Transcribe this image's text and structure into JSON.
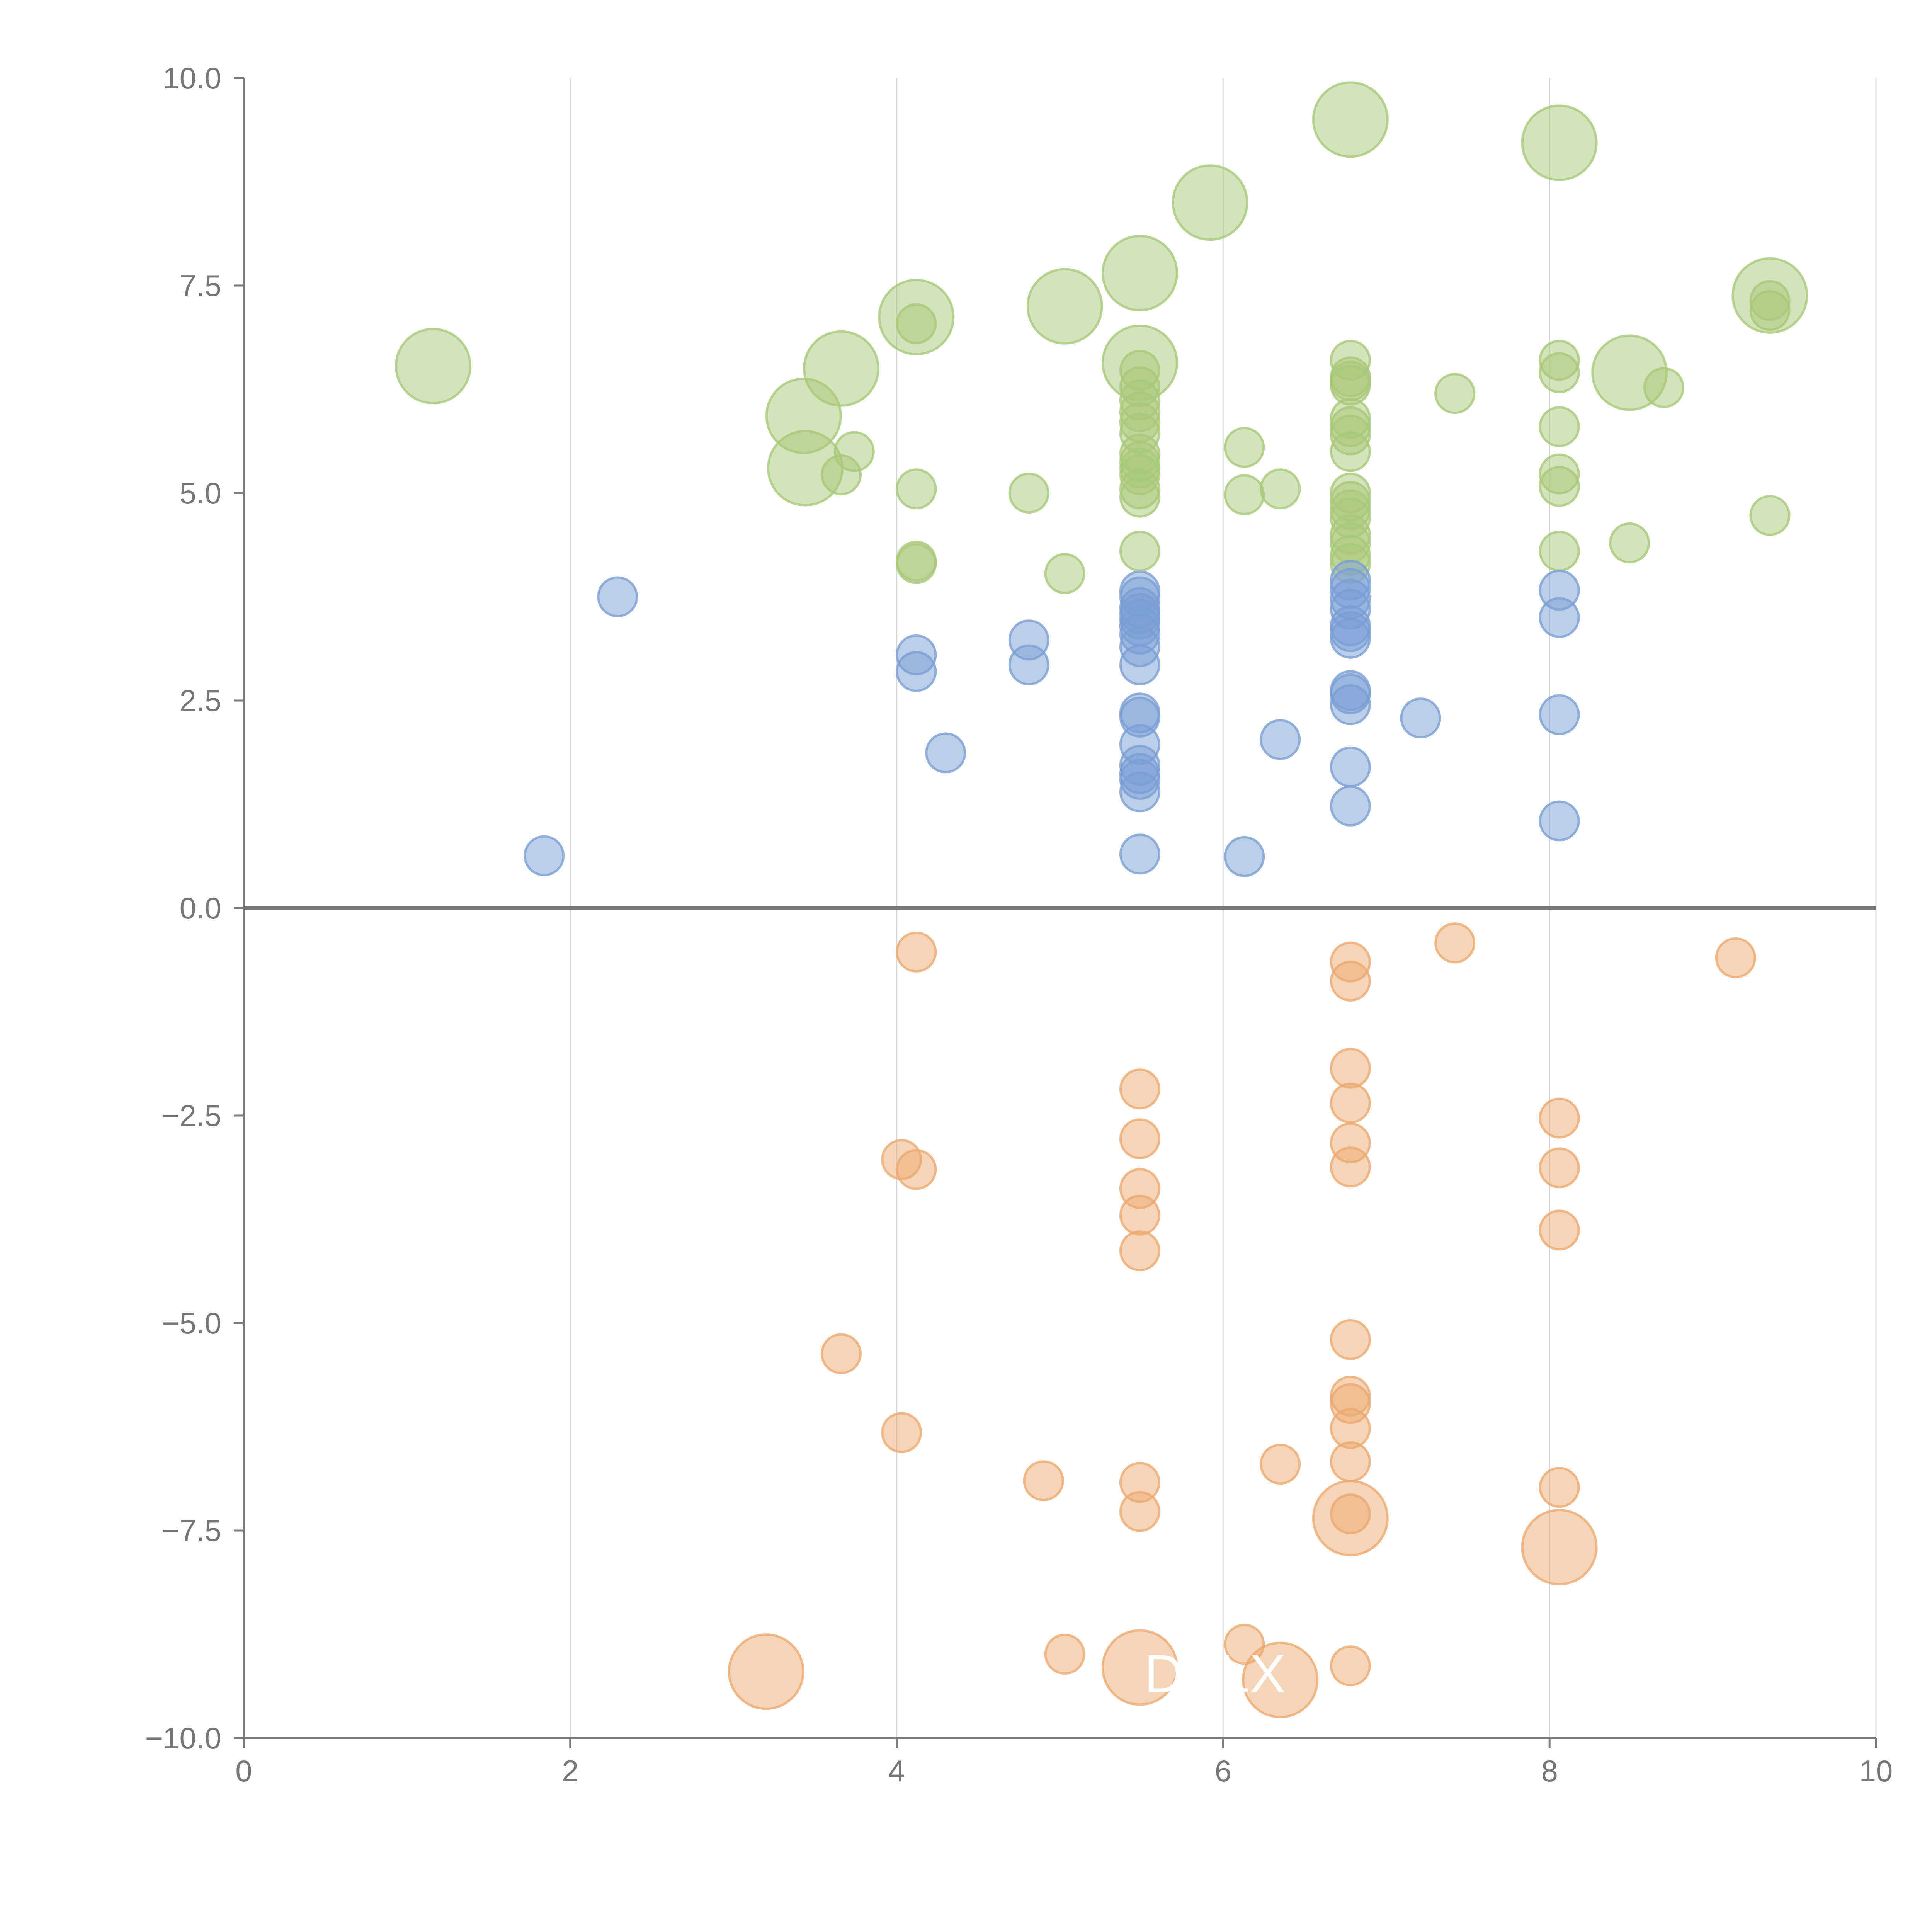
{
  "colors": {
    "background": "#ffffff",
    "axis": "#7a7a7a",
    "zero_line": "#7a7a7a",
    "grid": "#d8d8d8",
    "tick_text": "#767676",
    "overlay_text": "#ffffff"
  },
  "overlay_labels": [
    {
      "text": "DYLX",
      "x": 5.95,
      "y": -9.45
    }
  ],
  "chart_data": {
    "type": "scatter",
    "title": "",
    "xlabel": "",
    "ylabel": "",
    "xlim": [
      0,
      10
    ],
    "ylim": [
      -10,
      10
    ],
    "grid": "vertical",
    "zero_line": true,
    "x_ticks": [
      "0",
      "2",
      "4",
      "6",
      "8",
      "10"
    ],
    "y_ticks": [
      "−10.0",
      "−7.5",
      "−5.0",
      "−2.5",
      "0.0",
      "2.5",
      "5.0",
      "7.5",
      "10.0"
    ],
    "x_tick_values": [
      0,
      2,
      4,
      6,
      8,
      10
    ],
    "y_tick_values": [
      -10,
      -7.5,
      -5,
      -2.5,
      0,
      2.5,
      5,
      7.5,
      10
    ],
    "series": [
      {
        "color": "#a8c879",
        "points": [
          {
            "x": 1.16,
            "y": 6.53,
            "s": "large"
          },
          {
            "x": 3.43,
            "y": 5.93,
            "s": "large"
          },
          {
            "x": 3.44,
            "y": 5.3,
            "s": "large"
          },
          {
            "x": 3.66,
            "y": 6.5,
            "s": "large"
          },
          {
            "x": 3.66,
            "y": 5.22,
            "s": "small"
          },
          {
            "x": 3.74,
            "y": 5.5,
            "s": "small"
          },
          {
            "x": 4.12,
            "y": 7.12,
            "s": "large"
          },
          {
            "x": 4.12,
            "y": 7.04,
            "s": "small"
          },
          {
            "x": 4.12,
            "y": 5.05,
            "s": "small"
          },
          {
            "x": 4.12,
            "y": 4.18,
            "s": "small"
          },
          {
            "x": 4.12,
            "y": 4.15,
            "s": "small"
          },
          {
            "x": 4.81,
            "y": 5.0,
            "s": "small"
          },
          {
            "x": 5.03,
            "y": 7.25,
            "s": "large"
          },
          {
            "x": 5.03,
            "y": 4.03,
            "s": "small"
          },
          {
            "x": 5.49,
            "y": 7.65,
            "s": "large"
          },
          {
            "x": 5.49,
            "y": 6.57,
            "s": "large"
          },
          {
            "x": 5.49,
            "y": 6.48,
            "s": "small"
          },
          {
            "x": 5.49,
            "y": 6.28,
            "s": "small"
          },
          {
            "x": 5.49,
            "y": 6.12,
            "s": "small"
          },
          {
            "x": 5.49,
            "y": 5.98,
            "s": "small"
          },
          {
            "x": 5.49,
            "y": 5.85,
            "s": "small"
          },
          {
            "x": 5.49,
            "y": 5.72,
            "s": "small"
          },
          {
            "x": 5.49,
            "y": 5.47,
            "s": "small"
          },
          {
            "x": 5.49,
            "y": 5.38,
            "s": "small"
          },
          {
            "x": 5.49,
            "y": 5.3,
            "s": "small"
          },
          {
            "x": 5.49,
            "y": 5.22,
            "s": "small"
          },
          {
            "x": 5.49,
            "y": 5.05,
            "s": "small"
          },
          {
            "x": 5.49,
            "y": 4.95,
            "s": "small"
          },
          {
            "x": 5.49,
            "y": 4.3,
            "s": "small"
          },
          {
            "x": 5.92,
            "y": 8.5,
            "s": "large"
          },
          {
            "x": 6.13,
            "y": 5.55,
            "s": "small"
          },
          {
            "x": 6.13,
            "y": 4.98,
            "s": "small"
          },
          {
            "x": 6.35,
            "y": 5.05,
            "s": "small"
          },
          {
            "x": 6.78,
            "y": 9.5,
            "s": "large"
          },
          {
            "x": 6.78,
            "y": 6.6,
            "s": "small"
          },
          {
            "x": 6.78,
            "y": 6.4,
            "s": "small"
          },
          {
            "x": 6.78,
            "y": 6.35,
            "s": "small"
          },
          {
            "x": 6.78,
            "y": 6.3,
            "s": "small"
          },
          {
            "x": 6.78,
            "y": 5.9,
            "s": "small"
          },
          {
            "x": 6.78,
            "y": 5.8,
            "s": "small"
          },
          {
            "x": 6.78,
            "y": 5.7,
            "s": "small"
          },
          {
            "x": 6.78,
            "y": 5.5,
            "s": "small"
          },
          {
            "x": 6.78,
            "y": 5.0,
            "s": "small"
          },
          {
            "x": 6.78,
            "y": 4.9,
            "s": "small"
          },
          {
            "x": 6.78,
            "y": 4.8,
            "s": "small"
          },
          {
            "x": 6.78,
            "y": 4.7,
            "s": "small"
          },
          {
            "x": 6.78,
            "y": 4.5,
            "s": "small"
          },
          {
            "x": 6.78,
            "y": 4.4,
            "s": "small"
          },
          {
            "x": 6.78,
            "y": 4.25,
            "s": "small"
          },
          {
            "x": 6.78,
            "y": 4.15,
            "s": "small"
          },
          {
            "x": 7.42,
            "y": 6.2,
            "s": "small"
          },
          {
            "x": 8.06,
            "y": 9.22,
            "s": "large"
          },
          {
            "x": 8.06,
            "y": 6.6,
            "s": "small"
          },
          {
            "x": 8.06,
            "y": 6.45,
            "s": "small"
          },
          {
            "x": 8.06,
            "y": 5.8,
            "s": "small"
          },
          {
            "x": 8.06,
            "y": 5.23,
            "s": "small"
          },
          {
            "x": 8.06,
            "y": 5.08,
            "s": "small"
          },
          {
            "x": 8.06,
            "y": 4.3,
            "s": "small"
          },
          {
            "x": 8.49,
            "y": 6.45,
            "s": "large"
          },
          {
            "x": 8.49,
            "y": 4.4,
            "s": "small"
          },
          {
            "x": 8.7,
            "y": 6.27,
            "s": "small"
          },
          {
            "x": 9.35,
            "y": 7.38,
            "s": "large"
          },
          {
            "x": 9.35,
            "y": 7.32,
            "s": "small"
          },
          {
            "x": 9.35,
            "y": 7.2,
            "s": "small"
          },
          {
            "x": 9.35,
            "y": 4.73,
            "s": "small"
          }
        ]
      },
      {
        "color": "#7a9fd3",
        "points": [
          {
            "x": 1.84,
            "y": 0.63,
            "s": "small"
          },
          {
            "x": 2.29,
            "y": 3.75,
            "s": "small"
          },
          {
            "x": 4.12,
            "y": 3.05,
            "s": "small"
          },
          {
            "x": 4.12,
            "y": 2.85,
            "s": "small"
          },
          {
            "x": 4.3,
            "y": 1.87,
            "s": "small"
          },
          {
            "x": 4.81,
            "y": 3.23,
            "s": "small"
          },
          {
            "x": 4.81,
            "y": 2.93,
            "s": "small"
          },
          {
            "x": 5.49,
            "y": 3.82,
            "s": "small"
          },
          {
            "x": 5.49,
            "y": 3.75,
            "s": "small"
          },
          {
            "x": 5.49,
            "y": 3.62,
            "s": "small"
          },
          {
            "x": 5.49,
            "y": 3.55,
            "s": "small"
          },
          {
            "x": 5.49,
            "y": 3.48,
            "s": "small"
          },
          {
            "x": 5.49,
            "y": 3.4,
            "s": "small"
          },
          {
            "x": 5.49,
            "y": 3.3,
            "s": "small"
          },
          {
            "x": 5.49,
            "y": 3.15,
            "s": "small"
          },
          {
            "x": 5.49,
            "y": 2.93,
            "s": "small"
          },
          {
            "x": 5.49,
            "y": 2.35,
            "s": "small"
          },
          {
            "x": 5.49,
            "y": 2.3,
            "s": "small"
          },
          {
            "x": 5.49,
            "y": 1.97,
            "s": "small"
          },
          {
            "x": 5.49,
            "y": 1.72,
            "s": "small"
          },
          {
            "x": 5.49,
            "y": 1.62,
            "s": "small"
          },
          {
            "x": 5.49,
            "y": 1.55,
            "s": "small"
          },
          {
            "x": 5.49,
            "y": 1.4,
            "s": "small"
          },
          {
            "x": 5.49,
            "y": 0.65,
            "s": "small"
          },
          {
            "x": 6.13,
            "y": 0.62,
            "s": "small"
          },
          {
            "x": 6.35,
            "y": 2.03,
            "s": "small"
          },
          {
            "x": 6.78,
            "y": 3.95,
            "s": "small"
          },
          {
            "x": 6.78,
            "y": 3.85,
            "s": "small"
          },
          {
            "x": 6.78,
            "y": 3.72,
            "s": "small"
          },
          {
            "x": 6.78,
            "y": 3.6,
            "s": "small"
          },
          {
            "x": 6.78,
            "y": 3.4,
            "s": "small"
          },
          {
            "x": 6.78,
            "y": 3.33,
            "s": "small"
          },
          {
            "x": 6.78,
            "y": 3.25,
            "s": "small"
          },
          {
            "x": 6.78,
            "y": 2.62,
            "s": "small"
          },
          {
            "x": 6.78,
            "y": 2.58,
            "s": "small"
          },
          {
            "x": 6.78,
            "y": 2.45,
            "s": "small"
          },
          {
            "x": 6.78,
            "y": 1.7,
            "s": "small"
          },
          {
            "x": 6.78,
            "y": 1.23,
            "s": "small"
          },
          {
            "x": 7.21,
            "y": 2.29,
            "s": "small"
          },
          {
            "x": 8.06,
            "y": 3.83,
            "s": "small"
          },
          {
            "x": 8.06,
            "y": 3.5,
            "s": "small"
          },
          {
            "x": 8.06,
            "y": 2.33,
            "s": "small"
          },
          {
            "x": 8.06,
            "y": 1.05,
            "s": "small"
          }
        ]
      },
      {
        "color": "#eba970",
        "points": [
          {
            "x": 3.2,
            "y": -9.2,
            "s": "large"
          },
          {
            "x": 3.66,
            "y": -5.37,
            "s": "small"
          },
          {
            "x": 4.03,
            "y": -3.03,
            "s": "small"
          },
          {
            "x": 4.03,
            "y": -6.32,
            "s": "small"
          },
          {
            "x": 4.12,
            "y": -0.53,
            "s": "small"
          },
          {
            "x": 4.12,
            "y": -3.15,
            "s": "small"
          },
          {
            "x": 4.9,
            "y": -6.9,
            "s": "small"
          },
          {
            "x": 5.03,
            "y": -8.99,
            "s": "small"
          },
          {
            "x": 5.49,
            "y": -2.18,
            "s": "small"
          },
          {
            "x": 5.49,
            "y": -2.78,
            "s": "small"
          },
          {
            "x": 5.49,
            "y": -3.38,
            "s": "small"
          },
          {
            "x": 5.49,
            "y": -3.7,
            "s": "small"
          },
          {
            "x": 5.49,
            "y": -4.13,
            "s": "small"
          },
          {
            "x": 5.49,
            "y": -6.92,
            "s": "small"
          },
          {
            "x": 5.49,
            "y": -7.27,
            "s": "small"
          },
          {
            "x": 5.49,
            "y": -9.15,
            "s": "large"
          },
          {
            "x": 6.13,
            "y": -8.87,
            "s": "small"
          },
          {
            "x": 6.35,
            "y": -9.3,
            "s": "large"
          },
          {
            "x": 6.35,
            "y": -6.7,
            "s": "small"
          },
          {
            "x": 6.78,
            "y": -0.65,
            "s": "small"
          },
          {
            "x": 6.78,
            "y": -0.88,
            "s": "small"
          },
          {
            "x": 6.78,
            "y": -1.93,
            "s": "small"
          },
          {
            "x": 6.78,
            "y": -2.35,
            "s": "small"
          },
          {
            "x": 6.78,
            "y": -2.83,
            "s": "small"
          },
          {
            "x": 6.78,
            "y": -3.12,
            "s": "small"
          },
          {
            "x": 6.78,
            "y": -5.2,
            "s": "small"
          },
          {
            "x": 6.78,
            "y": -5.88,
            "s": "small"
          },
          {
            "x": 6.78,
            "y": -5.97,
            "s": "small"
          },
          {
            "x": 6.78,
            "y": -6.27,
            "s": "small"
          },
          {
            "x": 6.78,
            "y": -6.67,
            "s": "small"
          },
          {
            "x": 6.78,
            "y": -7.35,
            "s": "large"
          },
          {
            "x": 6.78,
            "y": -7.3,
            "s": "small"
          },
          {
            "x": 6.78,
            "y": -9.13,
            "s": "small"
          },
          {
            "x": 7.42,
            "y": -0.42,
            "s": "small"
          },
          {
            "x": 8.06,
            "y": -2.53,
            "s": "small"
          },
          {
            "x": 8.06,
            "y": -3.13,
            "s": "small"
          },
          {
            "x": 8.06,
            "y": -3.88,
            "s": "small"
          },
          {
            "x": 8.06,
            "y": -6.98,
            "s": "small"
          },
          {
            "x": 8.06,
            "y": -7.7,
            "s": "large"
          },
          {
            "x": 9.14,
            "y": -0.6,
            "s": "small"
          }
        ]
      }
    ]
  }
}
